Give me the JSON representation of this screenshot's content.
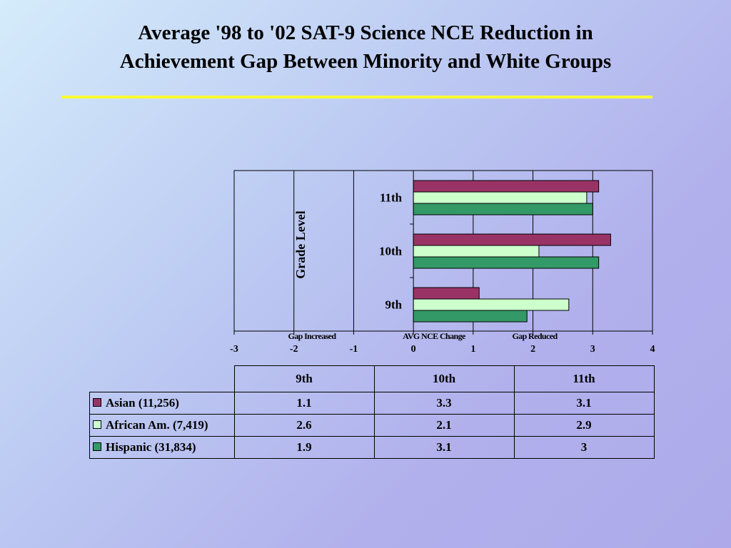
{
  "title": {
    "line1": "Average '98 to '02 SAT-9 Science NCE Reduction in",
    "line2": "Achievement Gap Between Minority and White Groups"
  },
  "colors": {
    "accent_rule": "#ffff33",
    "Asian": "#993366",
    "African Am.": "#ccffcc",
    "Hispanic": "#339966"
  },
  "chart_data": {
    "type": "bar",
    "orientation": "horizontal",
    "categories": [
      "9th",
      "10th",
      "11th"
    ],
    "series": [
      {
        "name": "Asian (11,256)",
        "values": [
          1.1,
          3.3,
          3.1
        ]
      },
      {
        "name": "African Am. (7,419)",
        "values": [
          2.6,
          2.1,
          2.9
        ]
      },
      {
        "name": "Hispanic (31,834)",
        "values": [
          1.9,
          3.1,
          3
        ]
      }
    ],
    "ylabel": "Grade Level",
    "xlim": [
      -3,
      4
    ],
    "x_ticks": [
      "-3",
      "-2",
      "-1",
      "0",
      "1",
      "2",
      "3",
      "4"
    ],
    "x_annotations": [
      "Gap Increased",
      "AVG NCE Change",
      "Gap Reduced"
    ],
    "grid": true,
    "data_table": {
      "headers": [
        "9th",
        "10th",
        "11th"
      ],
      "rows": [
        {
          "label": "Asian (11,256)",
          "cells": [
            "1.1",
            "3.3",
            "3.1"
          ]
        },
        {
          "label": "African Am. (7,419)",
          "cells": [
            "2.6",
            "2.1",
            "2.9"
          ]
        },
        {
          "label": "Hispanic (31,834)",
          "cells": [
            "1.9",
            "3.1",
            "3"
          ]
        }
      ]
    }
  }
}
